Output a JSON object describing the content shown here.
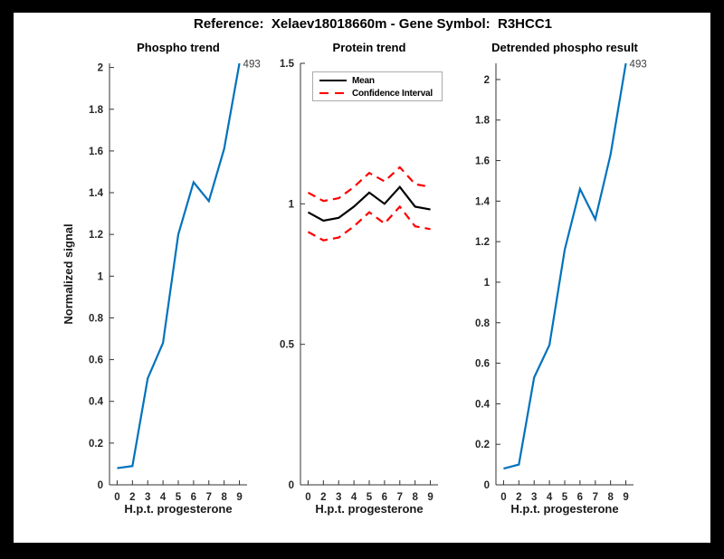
{
  "title": "Reference:  Xelaev18018660m - Gene Symbol:  R3HCC1",
  "colors": {
    "line_blue": "#0072BD",
    "line_red": "#FF0000",
    "line_black": "#000000",
    "axis": "#333333",
    "tick_label": "#262626",
    "annotation": "#3c3c3c",
    "figure_bg": "#FFFFFF",
    "frame_bg": "#000000"
  },
  "chart_data": [
    {
      "type": "line",
      "title": "Phospho trend",
      "xlabel": "H.p.t. progesterone",
      "ylabel": "Normalized signal",
      "categories": [
        "0",
        "2",
        "3",
        "4",
        "5",
        "6",
        "7",
        "8",
        "9"
      ],
      "series": [
        {
          "name": "phospho signal",
          "color": "#0072BD",
          "style": "solid",
          "values": [
            0.08,
            0.09,
            0.51,
            0.68,
            1.2,
            1.45,
            1.36,
            1.61,
            2.02
          ]
        }
      ],
      "annotation": {
        "text": "493",
        "at_last_point": true,
        "value": 2.02
      },
      "ylim": [
        0,
        2.02
      ],
      "yticks": [
        0,
        0.2,
        0.4,
        0.6,
        0.8,
        1,
        1.2,
        1.4,
        1.6,
        1.8,
        2
      ],
      "ytick_labels": [
        "0",
        "0.2",
        "0.4",
        "0.6",
        "0.8",
        "1",
        "1.2",
        "1.4",
        "1.6",
        "1.8",
        "2"
      ],
      "grid": false
    },
    {
      "type": "line",
      "title": "Protein trend",
      "xlabel": "H.p.t. progesterone",
      "ylabel": "",
      "categories": [
        "0",
        "2",
        "3",
        "4",
        "5",
        "6",
        "7",
        "8",
        "9"
      ],
      "series": [
        {
          "name": "Mean",
          "color": "#000000",
          "style": "solid",
          "values": [
            0.97,
            0.94,
            0.95,
            0.99,
            1.04,
            1.0,
            1.06,
            0.99,
            0.98
          ]
        },
        {
          "name": "Confidence Interval",
          "color": "#FF0000",
          "style": "dashed",
          "values": [
            1.04,
            1.01,
            1.02,
            1.06,
            1.11,
            1.08,
            1.13,
            1.07,
            1.06
          ]
        },
        {
          "name": "Confidence Interval (lower)",
          "color": "#FF0000",
          "style": "dashed",
          "values": [
            0.9,
            0.87,
            0.88,
            0.92,
            0.97,
            0.93,
            0.99,
            0.92,
            0.91
          ]
        }
      ],
      "legend": {
        "position": "northwest",
        "entries": [
          "Mean",
          "Confidence Interval"
        ]
      },
      "ylim": [
        0,
        1.5
      ],
      "yticks": [
        0,
        0.5,
        1,
        1.5
      ],
      "ytick_labels": [
        "0",
        "0.5",
        "1",
        "1.5"
      ],
      "grid": false
    },
    {
      "type": "line",
      "title": "Detrended phospho result",
      "xlabel": "H.p.t. progesterone",
      "ylabel": "",
      "categories": [
        "0",
        "2",
        "3",
        "4",
        "5",
        "6",
        "7",
        "8",
        "9"
      ],
      "series": [
        {
          "name": "detrended phospho signal",
          "color": "#0072BD",
          "style": "solid",
          "values": [
            0.08,
            0.1,
            0.53,
            0.69,
            1.16,
            1.46,
            1.31,
            1.63,
            2.08
          ]
        }
      ],
      "annotation": {
        "text": "493",
        "at_last_point": true,
        "value": 2.08
      },
      "ylim": [
        0,
        2.08
      ],
      "yticks": [
        0,
        0.2,
        0.4,
        0.6,
        0.8,
        1,
        1.2,
        1.4,
        1.6,
        1.8,
        2
      ],
      "ytick_labels": [
        "0",
        "0.2",
        "0.4",
        "0.6",
        "0.8",
        "1",
        "1.2",
        "1.4",
        "1.6",
        "1.8",
        "2"
      ],
      "grid": false
    }
  ]
}
